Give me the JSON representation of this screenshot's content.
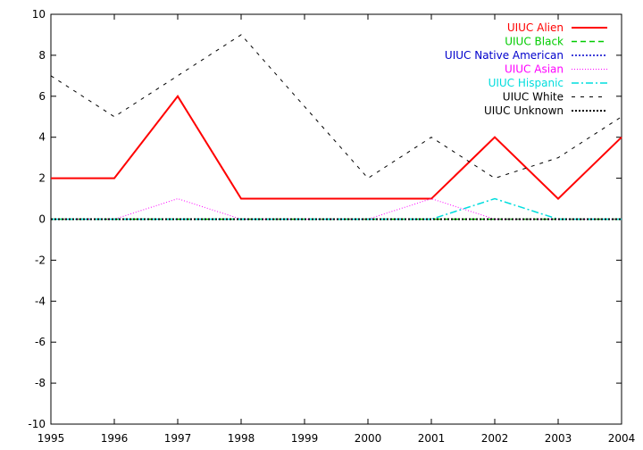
{
  "chart_data": {
    "type": "line",
    "x": [
      1995,
      1996,
      1997,
      1998,
      1999,
      2000,
      2001,
      2002,
      2003,
      2004
    ],
    "xlim": [
      1995,
      2004
    ],
    "ylim": [
      -10,
      10
    ],
    "x_ticks": [
      "1995",
      "1996",
      "1997",
      "1998",
      "1999",
      "2000",
      "2001",
      "2002",
      "2003",
      "2004"
    ],
    "y_ticks": [
      "-10",
      "-8",
      "-6",
      "-4",
      "-2",
      "0",
      "2",
      "4",
      "6",
      "8",
      "10"
    ],
    "grid": false,
    "legend_position": "top-right",
    "series": [
      {
        "name": "UIUC Alien",
        "color": "#ff0000",
        "style": "solid",
        "width": 2,
        "values": [
          2,
          2,
          6,
          1,
          1,
          1,
          1,
          4,
          1,
          4
        ]
      },
      {
        "name": "UIUC Black",
        "color": "#00cc00",
        "style": "dashed",
        "width": 1.5,
        "values": [
          0,
          0,
          0,
          0,
          0,
          0,
          0,
          0,
          0,
          0
        ]
      },
      {
        "name": "UIUC Native American",
        "color": "#0000cc",
        "style": "dotted",
        "width": 1.5,
        "values": [
          0,
          0,
          0,
          0,
          0,
          0,
          0,
          0,
          0,
          0
        ]
      },
      {
        "name": "UIUC Asian",
        "color": "#ff00ff",
        "style": "fine-dotted",
        "width": 1,
        "values": [
          0,
          0,
          1,
          0,
          0,
          0,
          1,
          0,
          0,
          0
        ]
      },
      {
        "name": "UIUC Hispanic",
        "color": "#00dddd",
        "style": "dashdot",
        "width": 1.5,
        "values": [
          0,
          0,
          0,
          0,
          0,
          0,
          0,
          1,
          0,
          0
        ]
      },
      {
        "name": "UIUC White",
        "color": "#000000",
        "style": "long-dashed",
        "width": 1,
        "values": [
          7,
          5,
          7,
          9,
          5.5,
          2,
          4,
          2,
          3,
          5
        ]
      },
      {
        "name": "UIUC Unknown",
        "color": "#000000",
        "style": "dense-dotted",
        "width": 2,
        "values": [
          0,
          0,
          0,
          0,
          0,
          0,
          0,
          0,
          0,
          0
        ]
      }
    ]
  }
}
